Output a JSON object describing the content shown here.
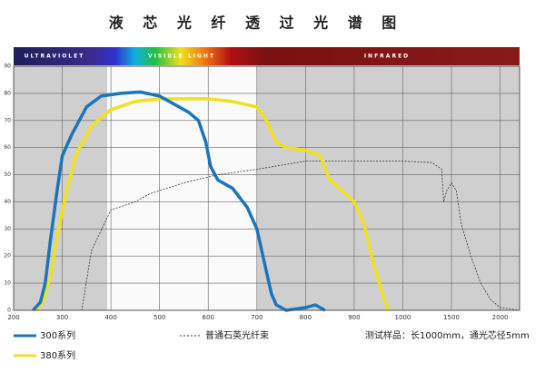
{
  "chart_data": {
    "type": "line",
    "title": "液 芯 光 纤 透 过 光 谱 图",
    "bands": [
      "ULTRAVIOLET",
      "VISIBLE LIGHT",
      "INFRARED"
    ],
    "note": "测试样品：长1000mm，通光芯径5mm",
    "xlim": [
      200,
      2200
    ],
    "xticks": [
      200,
      300,
      400,
      500,
      600,
      700,
      800,
      900,
      1000,
      1500,
      2000
    ],
    "ylim": [
      0,
      90
    ],
    "yticks": [
      0,
      10,
      20,
      30,
      40,
      50,
      60,
      70,
      80,
      90
    ],
    "grid": true,
    "series": [
      {
        "name": "300系列",
        "color": "#1a75bb",
        "dash": false,
        "x": [
          240,
          255,
          265,
          275,
          290,
          300,
          320,
          350,
          380,
          420,
          460,
          500,
          530,
          560,
          580,
          595,
          605,
          620,
          650,
          680,
          700,
          720,
          730,
          740,
          760,
          800,
          820,
          840
        ],
        "values": [
          0,
          3,
          10,
          25,
          45,
          57,
          65,
          75,
          79,
          80,
          80.5,
          79,
          76,
          73,
          70,
          62,
          53,
          48,
          45,
          38,
          30,
          14,
          6,
          2,
          0,
          1,
          2,
          0
        ]
      },
      {
        "name": "380系列",
        "color": "#f0e020",
        "dash": false,
        "x": [
          245,
          260,
          275,
          290,
          310,
          330,
          360,
          400,
          450,
          500,
          550,
          600,
          650,
          700,
          720,
          740,
          760,
          800,
          830,
          850,
          870,
          900,
          920,
          940,
          960,
          970
        ],
        "values": [
          0,
          3,
          12,
          28,
          45,
          58,
          68,
          74,
          77,
          78,
          78,
          78,
          77,
          75,
          70,
          62,
          60,
          59,
          57,
          48,
          45,
          40,
          32,
          17,
          5,
          0
        ]
      },
      {
        "name": "普通石英光纤束",
        "color": "#333333",
        "dash": true,
        "x": [
          300,
          340,
          360,
          400,
          450,
          480,
          550,
          620,
          700,
          800,
          900,
          1000,
          1300,
          1400,
          1420,
          1450,
          1500,
          1550,
          1600,
          1700,
          1800,
          1900,
          2000,
          2200
        ],
        "values": [
          0,
          0,
          22,
          37,
          40,
          43,
          47,
          50,
          52,
          55,
          55,
          55,
          54.5,
          52,
          40,
          44,
          47,
          44,
          32,
          20,
          10,
          4,
          1,
          0
        ]
      }
    ]
  }
}
